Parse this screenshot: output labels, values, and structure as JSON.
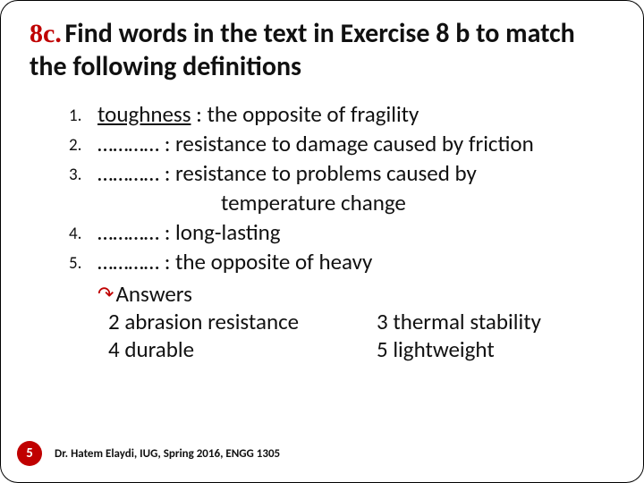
{
  "title": {
    "number": "8c.",
    "text": "Find words in the text in Exercise 8 b to match the following definitions"
  },
  "items": [
    {
      "num": "1.",
      "term": "toughness",
      "has_underline": true,
      "def": " : the opposite of fragility"
    },
    {
      "num": "2.",
      "term": "…………",
      "has_underline": false,
      "def": " : resistance to damage caused by friction"
    },
    {
      "num": "3.",
      "term": "…………",
      "has_underline": false,
      "def": " : resistance to problems caused by"
    },
    {
      "cont": "temperature change"
    },
    {
      "num": "4.",
      "term": "…………",
      "has_underline": false,
      "def": " : long-lasting"
    },
    {
      "num": "5.",
      "term": "…………",
      "has_underline": false,
      "def": " : the opposite of heavy"
    }
  ],
  "answers_label": "Answers",
  "answers": {
    "col1": [
      "2 abrasion resistance",
      "4 durable"
    ],
    "col2": [
      "3 thermal stability",
      "5 lightweight"
    ]
  },
  "footer": "Dr. Hatem Elaydi, IUG, Spring 2016, ENGG 1305",
  "page_number": "5",
  "colors": {
    "accent_red": "#c00000",
    "title_red": "#bf0000",
    "text": "#111111",
    "background": "#ffffff"
  }
}
